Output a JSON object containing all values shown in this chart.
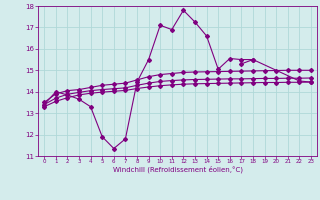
{
  "x": [
    0,
    1,
    2,
    3,
    4,
    5,
    6,
    7,
    8,
    9,
    10,
    11,
    12,
    13,
    14,
    15,
    16,
    17,
    18,
    19,
    20,
    21,
    22,
    23
  ],
  "line_wavy": [
    13.4,
    14.0,
    13.85,
    13.65,
    13.3,
    11.9,
    11.35,
    11.8,
    14.45,
    15.5,
    17.1,
    16.9,
    17.8,
    17.25,
    16.6,
    15.05,
    15.55,
    15.5,
    15.5,
    null,
    null,
    null,
    null,
    null
  ],
  "line_upper_right": [
    null,
    null,
    null,
    null,
    null,
    null,
    null,
    null,
    null,
    null,
    null,
    null,
    null,
    null,
    null,
    null,
    null,
    15.3,
    15.5,
    null,
    null,
    null,
    14.5,
    14.45
  ],
  "line_top": [
    13.5,
    13.9,
    14.05,
    14.1,
    14.2,
    14.3,
    14.35,
    14.4,
    14.55,
    14.7,
    14.8,
    14.85,
    14.9,
    14.92,
    14.93,
    14.94,
    14.95,
    14.96,
    14.97,
    14.98,
    14.99,
    15.0,
    15.0,
    15.0
  ],
  "line_mid": [
    13.4,
    13.7,
    13.88,
    13.97,
    14.05,
    14.1,
    14.14,
    14.18,
    14.3,
    14.4,
    14.48,
    14.52,
    14.55,
    14.57,
    14.58,
    14.59,
    14.6,
    14.6,
    14.61,
    14.62,
    14.62,
    14.63,
    14.63,
    14.64
  ],
  "line_bot": [
    13.3,
    13.55,
    13.72,
    13.85,
    13.93,
    13.98,
    14.02,
    14.06,
    14.15,
    14.22,
    14.28,
    14.32,
    14.35,
    14.37,
    14.38,
    14.39,
    14.4,
    14.41,
    14.42,
    14.43,
    14.43,
    14.44,
    14.44,
    14.45
  ],
  "color": "#800080",
  "bg_color": "#d4ecec",
  "grid_color": "#b0d8d8",
  "xlabel": "Windchill (Refroidissement éolien,°C)",
  "ylim": [
    11,
    18
  ],
  "xlim": [
    -0.5,
    23.5
  ],
  "yticks": [
    11,
    12,
    13,
    14,
    15,
    16,
    17,
    18
  ],
  "xticks": [
    0,
    1,
    2,
    3,
    4,
    5,
    6,
    7,
    8,
    9,
    10,
    11,
    12,
    13,
    14,
    15,
    16,
    17,
    18,
    19,
    20,
    21,
    22,
    23
  ]
}
